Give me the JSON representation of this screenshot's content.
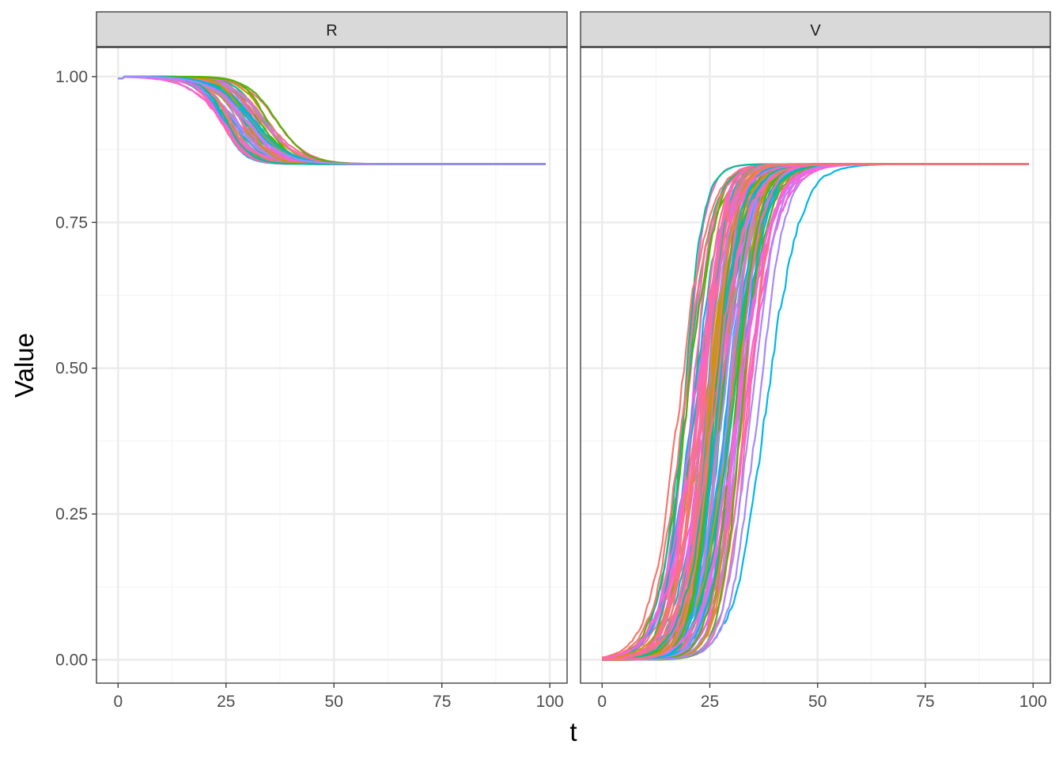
{
  "chart_data": {
    "type": "line",
    "facet_variable": "panel",
    "panels": [
      {
        "strip_label": "R",
        "ylim": [
          -0.04,
          1.05
        ],
        "xlim": [
          -5,
          104
        ],
        "x_ticks": [
          0,
          25,
          50,
          75,
          100
        ],
        "x_tick_labels": [
          "0",
          "25",
          "50",
          "75",
          "100"
        ],
        "curve_shape": "decreasing_sigmoid",
        "start_value": 1.0,
        "plateau_value": 0.85,
        "transition_center_range": [
          17,
          40
        ],
        "transition_width_range": [
          2.5,
          4.5
        ],
        "series_count": 60,
        "series_colors": [
          "#F8766D",
          "#C49A00",
          "#53B400",
          "#00C094",
          "#00B6EB",
          "#A58AFF",
          "#FB61D7",
          "#F564E3",
          "#FF6C91"
        ]
      },
      {
        "strip_label": "V",
        "ylim": [
          -0.04,
          1.05
        ],
        "xlim": [
          -5,
          104
        ],
        "x_ticks": [
          0,
          25,
          50,
          75,
          100
        ],
        "x_tick_labels": [
          "0",
          "25",
          "50",
          "75",
          "100"
        ],
        "curve_shape": "increasing_sigmoid",
        "start_value": 0.0,
        "plateau_value": 0.85,
        "transition_center_range": [
          14,
          40
        ],
        "transition_width_range": [
          2.2,
          4.0
        ],
        "series_count": 100,
        "series_colors": [
          "#F8766D",
          "#C49A00",
          "#53B400",
          "#00C094",
          "#00B6EB",
          "#A58AFF",
          "#FB61D7",
          "#F564E3",
          "#FF6C91"
        ]
      }
    ],
    "y_ticks": [
      0.0,
      0.25,
      0.5,
      0.75,
      1.0
    ],
    "y_tick_labels": [
      "0.00",
      "0.25",
      "0.50",
      "0.75",
      "1.00"
    ],
    "xlabel": "t",
    "ylabel": "Value",
    "grid": true,
    "legend": "none",
    "colors": {
      "panel_background": "#FFFFFF",
      "panel_border": "#333333",
      "strip_background": "#D9D9D9",
      "grid_major": "#EBEBEB",
      "grid_minor": "#F5F5F5",
      "tick_text": "#4D4D4D"
    }
  }
}
